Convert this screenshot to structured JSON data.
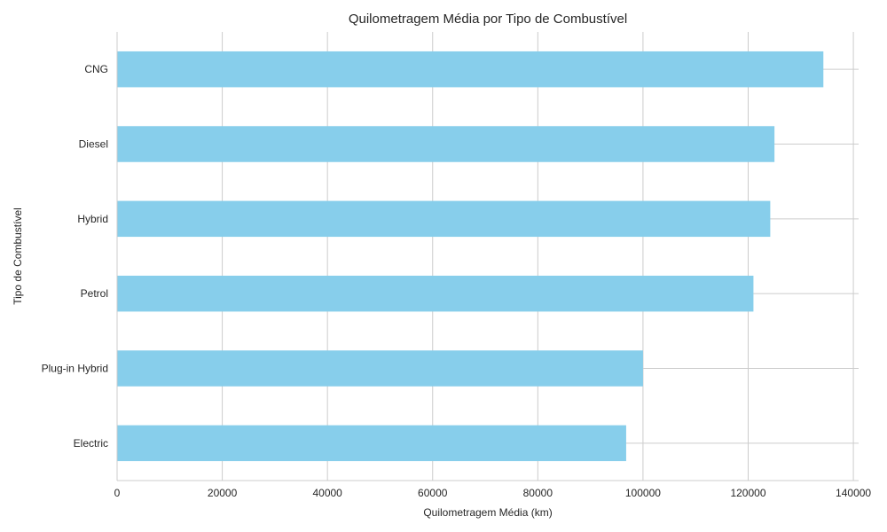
{
  "chart_data": {
    "type": "bar",
    "orientation": "horizontal",
    "title": "Quilometragem Média por Tipo de Combustível",
    "xlabel": "Quilometragem Média (km)",
    "ylabel": "Tipo de Combustível",
    "categories": [
      "CNG",
      "Diesel",
      "Hybrid",
      "Petrol",
      "Plug-in Hybrid",
      "Electric"
    ],
    "values": [
      134300,
      125000,
      124200,
      121000,
      100000,
      96800
    ],
    "xlim": [
      0,
      141000
    ],
    "xticks": [
      0,
      20000,
      40000,
      60000,
      80000,
      100000,
      120000,
      140000
    ],
    "xtick_labels": [
      "0",
      "20000",
      "40000",
      "60000",
      "80000",
      "100000",
      "120000",
      "140000"
    ],
    "grid": true,
    "colors": {
      "bar": "#87ceeb",
      "grid": "#cccccc",
      "text": "#262626"
    }
  }
}
